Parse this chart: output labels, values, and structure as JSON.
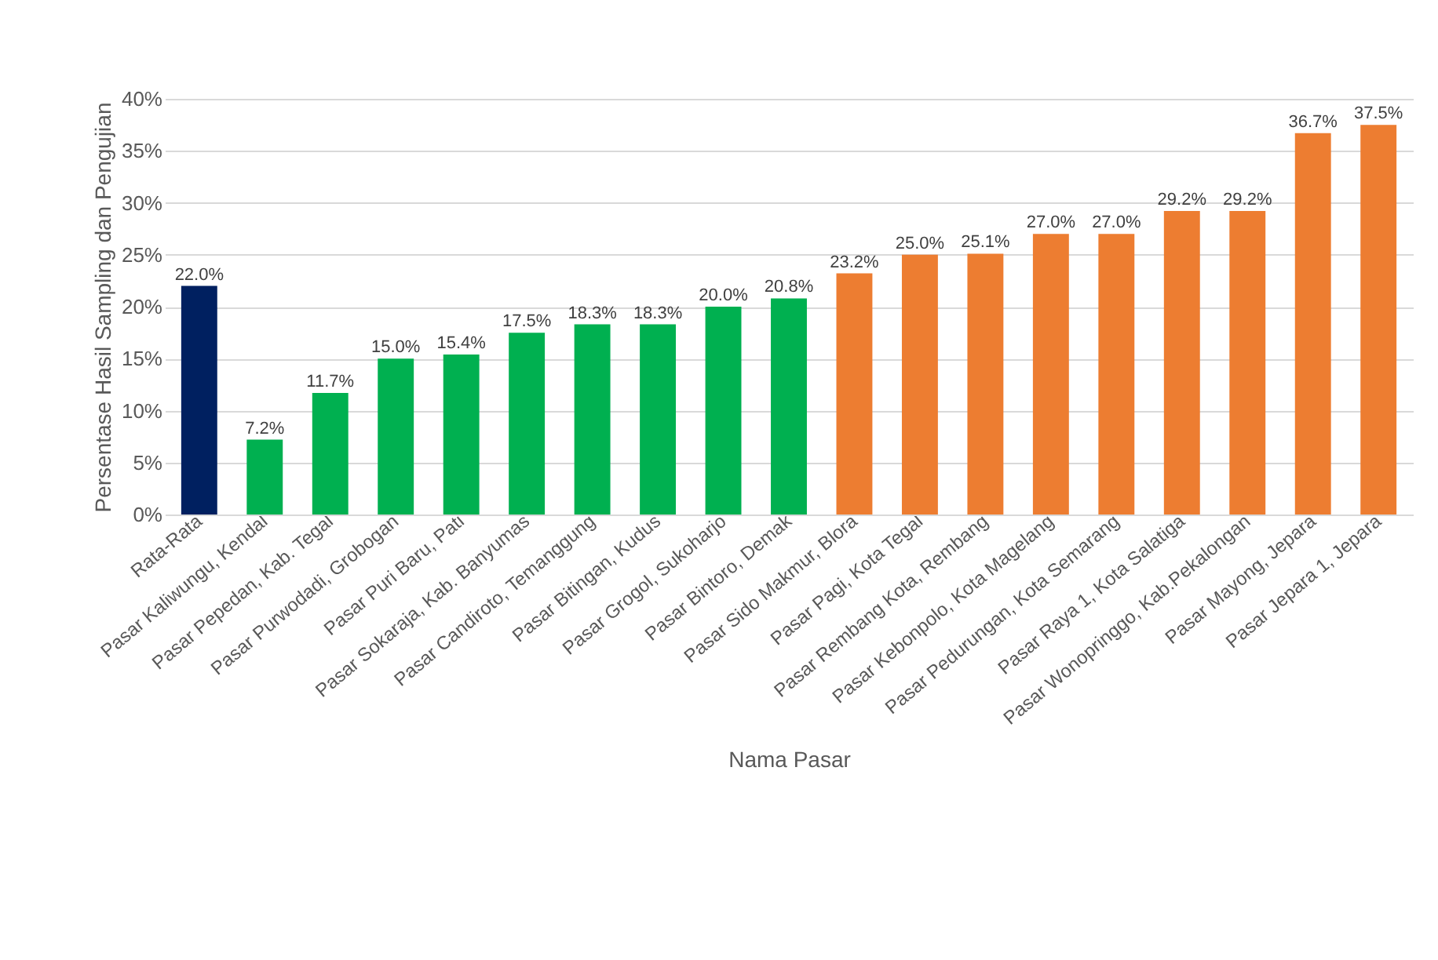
{
  "chart_data": {
    "type": "bar",
    "xlabel": "Nama Pasar",
    "ylabel": "Persentase Hasil Sampling dan Pengujian",
    "categories": [
      "Rata-Rata",
      "Pasar Kaliwungu, Kendal",
      "Pasar Pepedan, Kab. Tegal",
      "Pasar Purwodadi, Grobogan",
      "Pasar Puri Baru, Pati",
      "Pasar Sokaraja, Kab. Banyumas",
      "Pasar Candiroto, Temanggung",
      "Pasar Bitingan, Kudus",
      "Pasar Grogol, Sukoharjo",
      "Pasar Bintoro, Demak",
      "Pasar Sido Makmur, Blora",
      "Pasar Pagi, Kota Tegal",
      "Pasar Rembang Kota, Rembang",
      "Pasar Kebonpolo, Kota Magelang",
      "Pasar Pedurungan, Kota Semarang",
      "Pasar Raya 1, Kota Salatiga",
      "Pasar Wonopringgo, Kab.Pekalongan",
      "Pasar Mayong, Jepara",
      "Pasar Jepara 1, Jepara"
    ],
    "values": [
      22.0,
      7.2,
      11.7,
      15.0,
      15.4,
      17.5,
      18.3,
      18.3,
      20.0,
      20.8,
      23.2,
      25.0,
      25.1,
      27.0,
      27.0,
      29.2,
      29.2,
      36.7,
      37.5
    ],
    "value_labels": [
      "22.0%",
      "7.2%",
      "11.7%",
      "15.0%",
      "15.4%",
      "17.5%",
      "18.3%",
      "18.3%",
      "20.0%",
      "20.8%",
      "23.2%",
      "25.0%",
      "25.1%",
      "27.0%",
      "27.0%",
      "29.2%",
      "29.2%",
      "36.7%",
      "37.5%"
    ],
    "colors": [
      "#002060",
      "#00b050",
      "#00b050",
      "#00b050",
      "#00b050",
      "#00b050",
      "#00b050",
      "#00b050",
      "#00b050",
      "#00b050",
      "#ed7d31",
      "#ed7d31",
      "#ed7d31",
      "#ed7d31",
      "#ed7d31",
      "#ed7d31",
      "#ed7d31",
      "#ed7d31",
      "#ed7d31"
    ],
    "ylim": [
      0,
      40
    ],
    "yticks": [
      {
        "value": 0,
        "label": "0%"
      },
      {
        "value": 5,
        "label": "5%"
      },
      {
        "value": 10,
        "label": "10%"
      },
      {
        "value": 15,
        "label": "15%"
      },
      {
        "value": 20,
        "label": "20%"
      },
      {
        "value": 25,
        "label": "25%"
      },
      {
        "value": 30,
        "label": "30%"
      },
      {
        "value": 35,
        "label": "35%"
      },
      {
        "value": 40,
        "label": "40%"
      }
    ],
    "grid": "y"
  }
}
